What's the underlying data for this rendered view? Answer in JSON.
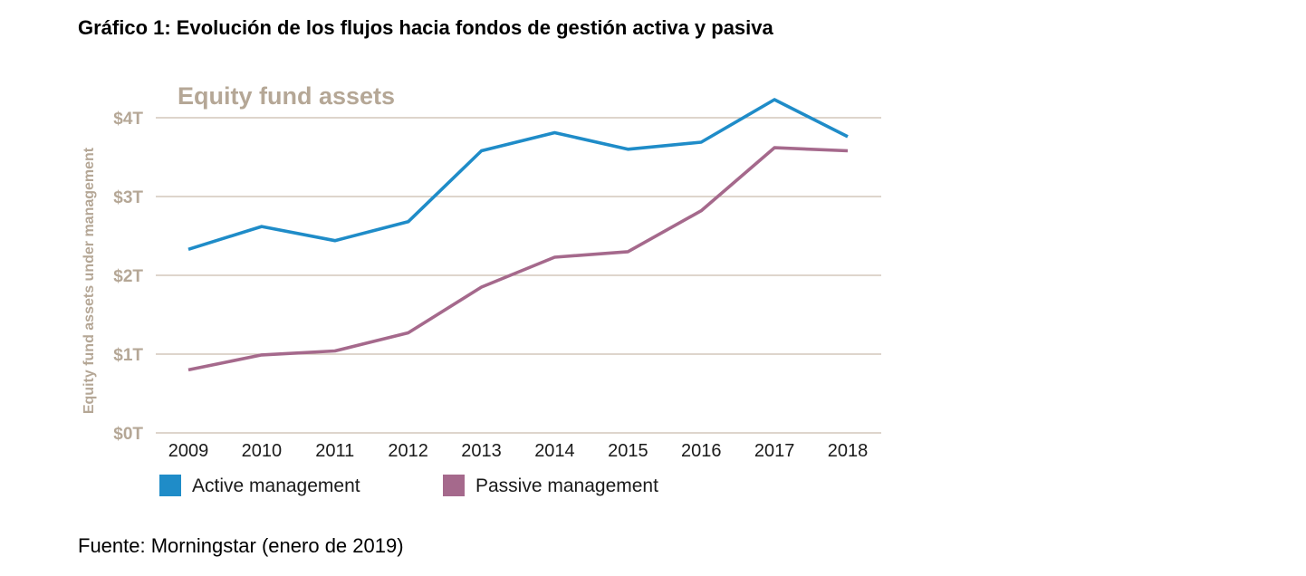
{
  "document": {
    "title": "Gráfico 1: Evolución de los flujos hacia fondos de gestión activa y pasiva",
    "source": "Fuente: Morningstar (enero de 2019)"
  },
  "colors": {
    "active": "#1f8cc8",
    "passive": "#a5698c",
    "title": "#b5a796",
    "grid": "#c9bcae",
    "axis_text": "#b5a796"
  },
  "chart_data": {
    "type": "line",
    "title": "Equity fund assets",
    "ylabel": "Equity fund assets under management",
    "xlabel": "",
    "categories": [
      "2009",
      "2010",
      "2011",
      "2012",
      "2013",
      "2014",
      "2015",
      "2016",
      "2017",
      "2018"
    ],
    "yticks": [
      "$0T",
      "$1T",
      "$2T",
      "$3T",
      "$4T"
    ],
    "ylim": [
      0,
      4
    ],
    "grid": true,
    "legend_position": "bottom",
    "series": [
      {
        "name": "Active management",
        "key": "active",
        "values": [
          2.33,
          2.62,
          2.44,
          2.68,
          3.58,
          3.81,
          3.6,
          3.69,
          4.23,
          3.76
        ]
      },
      {
        "name": "Passive management",
        "key": "passive",
        "values": [
          0.8,
          0.99,
          1.04,
          1.27,
          1.85,
          2.23,
          2.3,
          2.82,
          3.62,
          3.58
        ]
      }
    ]
  }
}
